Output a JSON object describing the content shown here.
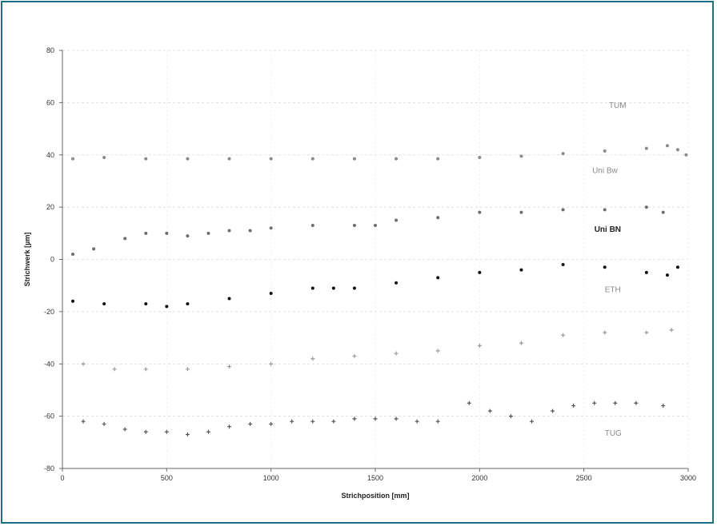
{
  "chart_data": {
    "type": "scatter",
    "title": "",
    "xlabel": "Strichposition [mm]",
    "ylabel": "Strichwerk [µm]",
    "xlim": [
      0,
      3000
    ],
    "ylim": [
      -80,
      80
    ],
    "x_ticks": [
      0,
      500,
      1000,
      1500,
      2000,
      2500,
      3000
    ],
    "y_ticks": [
      -80,
      -60,
      -40,
      -20,
      0,
      20,
      40,
      60,
      80
    ],
    "grid": "dashed",
    "colors": {
      "TUM": "#8a8a8a",
      "Uni Bw": "#6e6e6e",
      "Uni BN": "#111111",
      "ETH": "#9a9a9a",
      "TUG": "#555555"
    },
    "series": [
      {
        "name": "TUM",
        "marker": "point",
        "points": [
          [
            50,
            38.5
          ],
          [
            200,
            39
          ],
          [
            400,
            38.5
          ],
          [
            600,
            38.5
          ],
          [
            800,
            38.5
          ],
          [
            1000,
            38.5
          ],
          [
            1200,
            38.5
          ],
          [
            1400,
            38.5
          ],
          [
            1600,
            38.5
          ],
          [
            1800,
            38.5
          ],
          [
            2000,
            39
          ],
          [
            2200,
            39.5
          ],
          [
            2400,
            40.5
          ],
          [
            2600,
            41.5
          ],
          [
            2800,
            42.5
          ],
          [
            2900,
            43.5
          ],
          [
            2950,
            42
          ],
          [
            2990,
            40
          ]
        ]
      },
      {
        "name": "Uni Bw",
        "marker": "point",
        "points": [
          [
            50,
            2
          ],
          [
            150,
            4
          ],
          [
            300,
            8
          ],
          [
            400,
            10
          ],
          [
            500,
            10
          ],
          [
            600,
            9
          ],
          [
            700,
            10
          ],
          [
            800,
            11
          ],
          [
            900,
            11
          ],
          [
            1000,
            12
          ],
          [
            1200,
            13
          ],
          [
            1400,
            13
          ],
          [
            1500,
            13
          ],
          [
            1600,
            15
          ],
          [
            1800,
            16
          ],
          [
            2000,
            18
          ],
          [
            2200,
            18
          ],
          [
            2400,
            19
          ],
          [
            2600,
            19
          ],
          [
            2800,
            20
          ],
          [
            2880,
            18
          ]
        ]
      },
      {
        "name": "Uni BN",
        "marker": "point",
        "points": [
          [
            50,
            -16
          ],
          [
            200,
            -17
          ],
          [
            400,
            -17
          ],
          [
            500,
            -18
          ],
          [
            600,
            -17
          ],
          [
            800,
            -15
          ],
          [
            1000,
            -13
          ],
          [
            1200,
            -11
          ],
          [
            1300,
            -11
          ],
          [
            1400,
            -11
          ],
          [
            1600,
            -9
          ],
          [
            1800,
            -7
          ],
          [
            2000,
            -5
          ],
          [
            2200,
            -4
          ],
          [
            2400,
            -2
          ],
          [
            2600,
            -3
          ],
          [
            2800,
            -5
          ],
          [
            2900,
            -6
          ],
          [
            2950,
            -3
          ]
        ]
      },
      {
        "name": "ETH",
        "marker": "plus",
        "points": [
          [
            100,
            -40
          ],
          [
            250,
            -42
          ],
          [
            400,
            -42
          ],
          [
            600,
            -42
          ],
          [
            800,
            -41
          ],
          [
            1000,
            -40
          ],
          [
            1200,
            -38
          ],
          [
            1400,
            -37
          ],
          [
            1600,
            -36
          ],
          [
            1800,
            -35
          ],
          [
            2000,
            -33
          ],
          [
            2200,
            -32
          ],
          [
            2400,
            -29
          ],
          [
            2600,
            -28
          ],
          [
            2800,
            -28
          ],
          [
            2920,
            -27
          ]
        ]
      },
      {
        "name": "TUG",
        "marker": "plus",
        "points": [
          [
            100,
            -62
          ],
          [
            200,
            -63
          ],
          [
            300,
            -65
          ],
          [
            400,
            -66
          ],
          [
            500,
            -66
          ],
          [
            600,
            -67
          ],
          [
            700,
            -66
          ],
          [
            800,
            -64
          ],
          [
            900,
            -63
          ],
          [
            1000,
            -63
          ],
          [
            1100,
            -62
          ],
          [
            1200,
            -62
          ],
          [
            1300,
            -62
          ],
          [
            1400,
            -61
          ],
          [
            1500,
            -61
          ],
          [
            1600,
            -61
          ],
          [
            1700,
            -62
          ],
          [
            1800,
            -62
          ],
          [
            1950,
            -55
          ],
          [
            2050,
            -58
          ],
          [
            2150,
            -60
          ],
          [
            2250,
            -62
          ],
          [
            2350,
            -58
          ],
          [
            2450,
            -56
          ],
          [
            2550,
            -55
          ],
          [
            2650,
            -55
          ],
          [
            2750,
            -55
          ],
          [
            2880,
            -56
          ]
        ]
      }
    ],
    "series_labels": [
      {
        "text": "TUM",
        "x": 2620,
        "y": 58,
        "bold": false
      },
      {
        "text": "Uni Bw",
        "x": 2540,
        "y": 33,
        "bold": false
      },
      {
        "text": "Uni BN",
        "x": 2550,
        "y": 10.5,
        "bold": true
      },
      {
        "text": "ETH",
        "x": 2600,
        "y": -12.5,
        "bold": false
      },
      {
        "text": "TUG",
        "x": 2600,
        "y": -67.5,
        "bold": false
      }
    ]
  }
}
